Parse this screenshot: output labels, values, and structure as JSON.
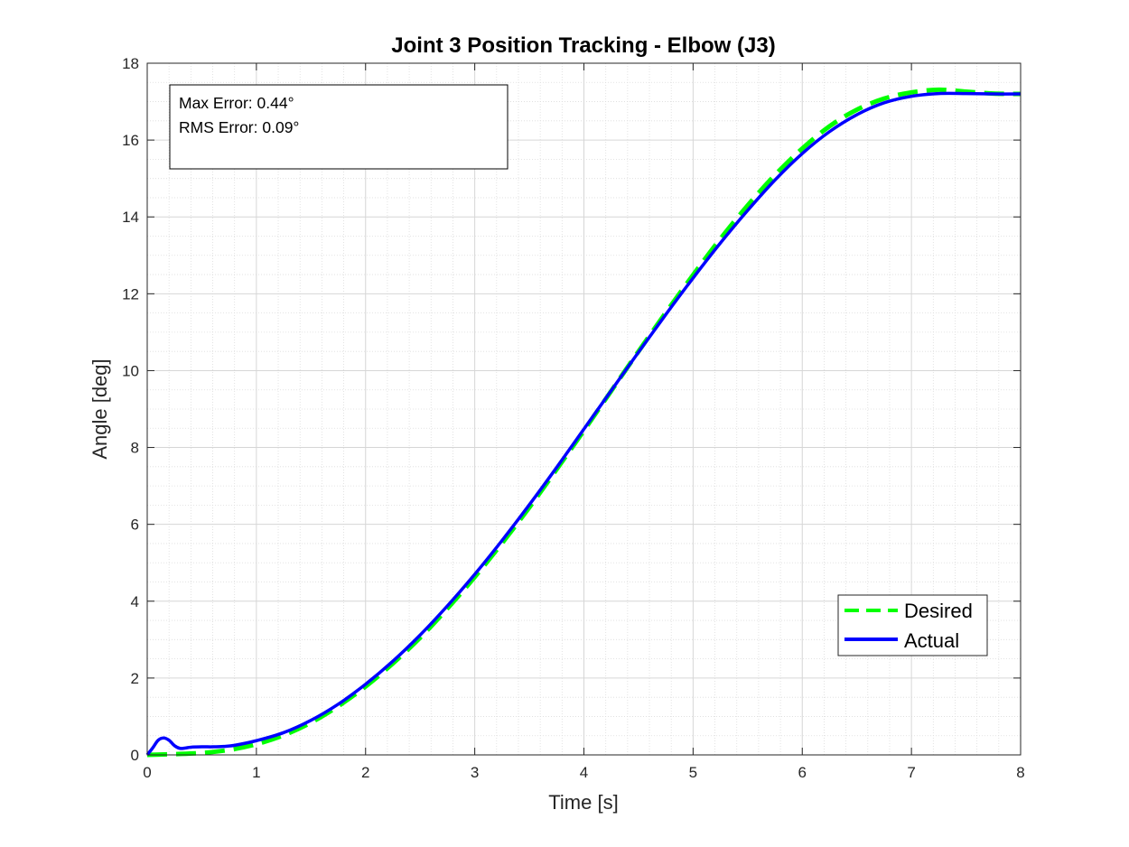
{
  "chart_data": {
    "type": "line",
    "title": "Joint 3 Position Tracking - Elbow (J3)",
    "xlabel": "Time [s]",
    "ylabel": "Angle [deg]",
    "xlim": [
      0,
      8
    ],
    "ylim": [
      0,
      18
    ],
    "xticks": [
      "0",
      "1",
      "2",
      "3",
      "4",
      "5",
      "6",
      "7",
      "8"
    ],
    "yticks": [
      "0",
      "2",
      "4",
      "6",
      "8",
      "10",
      "12",
      "14",
      "16",
      "18"
    ],
    "grid": "major and minor",
    "legend_position": "bottom-right",
    "annotation": {
      "max_error": "Max Error: 0.44°",
      "rms_error": "RMS Error: 0.09°"
    },
    "series": [
      {
        "name": "Desired",
        "color": "#00ff00",
        "style": "dashed",
        "x": [
          0,
          0.25,
          0.5,
          0.75,
          1.0,
          1.25,
          1.5,
          1.75,
          2.0,
          2.25,
          2.5,
          2.75,
          3.0,
          3.25,
          3.5,
          3.75,
          4.0,
          4.25,
          4.5,
          4.75,
          5.0,
          5.25,
          5.5,
          5.75,
          6.0,
          6.25,
          6.5,
          6.75,
          7.0,
          7.25,
          7.5,
          7.75,
          8.0
        ],
        "values": [
          0.0,
          0.02,
          0.05,
          0.13,
          0.28,
          0.51,
          0.84,
          1.27,
          1.78,
          2.38,
          3.05,
          3.81,
          4.63,
          5.51,
          6.44,
          7.43,
          8.44,
          9.47,
          10.5,
          11.51,
          12.49,
          13.43,
          14.3,
          15.09,
          15.78,
          16.36,
          16.79,
          17.08,
          17.24,
          17.31,
          17.26,
          17.21,
          17.2
        ]
      },
      {
        "name": "Actual",
        "color": "#0000ff",
        "style": "solid",
        "x": [
          0,
          0.05,
          0.1,
          0.15,
          0.2,
          0.25,
          0.3,
          0.35,
          0.4,
          0.5,
          0.6,
          0.7,
          0.8,
          1.0,
          1.25,
          1.5,
          1.75,
          2.0,
          2.25,
          2.5,
          2.75,
          3.0,
          3.25,
          3.5,
          3.75,
          4.0,
          4.25,
          4.5,
          4.75,
          5.0,
          5.25,
          5.5,
          5.75,
          6.0,
          6.25,
          6.5,
          6.75,
          7.0,
          7.25,
          7.5,
          7.75,
          8.0
        ],
        "values": [
          0.0,
          0.18,
          0.38,
          0.44,
          0.38,
          0.24,
          0.17,
          0.18,
          0.2,
          0.21,
          0.21,
          0.22,
          0.25,
          0.37,
          0.58,
          0.9,
          1.32,
          1.84,
          2.44,
          3.12,
          3.88,
          4.7,
          5.58,
          6.51,
          7.48,
          8.48,
          9.48,
          10.48,
          11.46,
          12.41,
          13.32,
          14.17,
          14.96,
          15.65,
          16.22,
          16.66,
          16.97,
          17.14,
          17.21,
          17.21,
          17.2,
          17.2
        ]
      }
    ]
  }
}
